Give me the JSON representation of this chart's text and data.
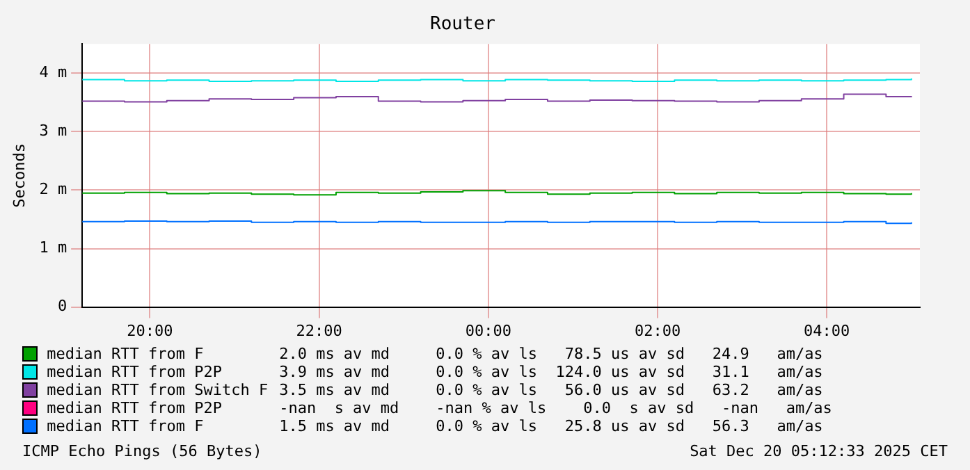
{
  "chart_data": {
    "type": "step",
    "title": "Router",
    "ylabel": "Seconds",
    "x": [
      "2025-12-19T19:12",
      "2025-12-19T19:42",
      "2025-12-19T20:12",
      "2025-12-19T20:42",
      "2025-12-19T21:12",
      "2025-12-19T21:42",
      "2025-12-19T22:12",
      "2025-12-19T22:42",
      "2025-12-19T23:12",
      "2025-12-19T23:42",
      "2025-12-20T00:12",
      "2025-12-20T00:42",
      "2025-12-20T01:12",
      "2025-12-20T01:42",
      "2025-12-20T02:12",
      "2025-12-20T02:42",
      "2025-12-20T03:12",
      "2025-12-20T03:42",
      "2025-12-20T04:12",
      "2025-12-20T04:42",
      "2025-12-20T05:00"
    ],
    "series": [
      {
        "name": "median RTT from F",
        "color": "#00a000",
        "values": [
          1.95,
          1.96,
          1.94,
          1.95,
          1.93,
          1.92,
          1.96,
          1.95,
          1.97,
          1.99,
          1.96,
          1.93,
          1.95,
          1.96,
          1.94,
          1.96,
          1.95,
          1.96,
          1.94,
          1.93,
          1.95
        ]
      },
      {
        "name": "median RTT from P2P",
        "color": "#00e6e6",
        "values": [
          3.89,
          3.87,
          3.88,
          3.86,
          3.87,
          3.88,
          3.86,
          3.88,
          3.89,
          3.87,
          3.89,
          3.88,
          3.87,
          3.86,
          3.88,
          3.87,
          3.88,
          3.87,
          3.88,
          3.89,
          3.91
        ]
      },
      {
        "name": "median RTT from Switch F",
        "color": "#8040a0",
        "values": [
          3.52,
          3.51,
          3.53,
          3.56,
          3.55,
          3.58,
          3.6,
          3.52,
          3.51,
          3.53,
          3.55,
          3.52,
          3.54,
          3.53,
          3.52,
          3.51,
          3.53,
          3.56,
          3.64,
          3.6,
          3.59
        ]
      },
      {
        "name": "median RTT from P2P",
        "color": "#ff0080",
        "values": [
          null,
          null,
          null,
          null,
          null,
          null,
          null,
          null,
          null,
          null,
          null,
          null,
          null,
          null,
          null,
          null,
          null,
          null,
          null,
          null,
          null
        ]
      },
      {
        "name": "median RTT from F",
        "color": "#0070ff",
        "values": [
          1.46,
          1.47,
          1.46,
          1.47,
          1.45,
          1.46,
          1.45,
          1.46,
          1.45,
          1.45,
          1.46,
          1.45,
          1.46,
          1.46,
          1.45,
          1.46,
          1.45,
          1.45,
          1.46,
          1.43,
          1.45
        ]
      }
    ],
    "xlim": [
      "2025-12-19T19:12",
      "2025-12-20T05:06"
    ],
    "xticks": [
      {
        "value": "2025-12-19T20:00",
        "label": "20:00"
      },
      {
        "value": "2025-12-19T22:00",
        "label": "22:00"
      },
      {
        "value": "2025-12-20T00:00",
        "label": "00:00"
      },
      {
        "value": "2025-12-20T02:00",
        "label": "02:00"
      },
      {
        "value": "2025-12-20T04:00",
        "label": "04:00"
      }
    ],
    "ylim": [
      0,
      4.5
    ],
    "yticks": [
      0,
      {
        "value": 1,
        "label": "1 m"
      },
      {
        "value": 2,
        "label": "2 m"
      },
      {
        "value": 3,
        "label": "3 m"
      },
      {
        "value": 4,
        "label": "4 m"
      }
    ],
    "grid": true,
    "legend": "bottom",
    "marker": "none",
    "line_style": "solid",
    "annotations": [
      "2.0 ms av md     0.0 % av ls   78.5 us av sd   24.9   am/as",
      "3.9 ms av md     0.0 % av ls  124.0 us av sd   31.1   am/as",
      "3.5 ms av md     0.0 % av ls   56.0 us av sd   63.2   am/as",
      "-nan  s av md    -nan % av ls    0.0  s av sd   -nan   am/as",
      "1.5 ms av md     0.0 % av ls   25.8 us av sd   56.3   am/as",
      "ICMP Echo Pings (56 Bytes)",
      "Sat Dec 20 05:12:33 2025 CET"
    ]
  }
}
